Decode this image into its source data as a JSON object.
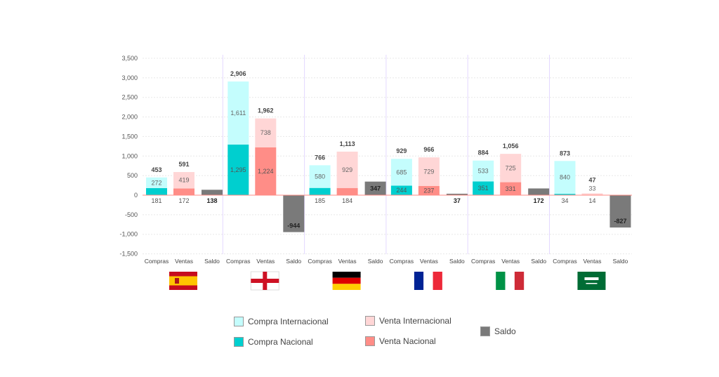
{
  "chart_data": {
    "type": "bar",
    "stacked": true,
    "title": "",
    "xlabel": "",
    "ylabel": "",
    "ylim": [
      -1500,
      3500
    ],
    "yticks": [
      "-1,500",
      "-1,000",
      "-500",
      "0",
      "500",
      "1,000",
      "1,500",
      "2,000",
      "2,500",
      "3,000",
      "3,500"
    ],
    "ytick_values": [
      -1500,
      -1000,
      -500,
      0,
      500,
      1000,
      1500,
      2000,
      2500,
      3000,
      3500
    ],
    "grid": true,
    "bar_labels": [
      "Compras",
      "Ventas",
      "Saldo"
    ],
    "groups": [
      {
        "country": "España",
        "flag": "spain-flag",
        "compra_nacional": 181,
        "compra_internacional": 272,
        "compras_total": "453",
        "venta_nacional": 172,
        "venta_internacional": 419,
        "ventas_total": "591",
        "saldo": 138
      },
      {
        "country": "Inglaterra",
        "flag": "england-flag",
        "compra_nacional": 1295,
        "compra_internacional": 1611,
        "compras_total": "2,906",
        "venta_nacional": 1224,
        "venta_internacional": 738,
        "ventas_total": "1,962",
        "saldo": -944
      },
      {
        "country": "Alemania",
        "flag": "germany-flag",
        "compra_nacional": 185,
        "compra_internacional": 580,
        "compras_total": "766",
        "venta_nacional": 184,
        "venta_internacional": 929,
        "ventas_total": "1,113",
        "saldo": 347
      },
      {
        "country": "Francia",
        "flag": "france-flag",
        "compra_nacional": 244,
        "compra_internacional": 685,
        "compras_total": "929",
        "venta_nacional": 237,
        "venta_internacional": 729,
        "ventas_total": "966",
        "saldo": 37
      },
      {
        "country": "Italia",
        "flag": "italy-flag",
        "compra_nacional": 351,
        "compra_internacional": 533,
        "compras_total": "884",
        "venta_nacional": 331,
        "venta_internacional": 725,
        "ventas_total": "1,056",
        "saldo": 172
      },
      {
        "country": "Arabia Saudí",
        "flag": "saudi-arabia-flag",
        "compra_nacional": 34,
        "compra_internacional": 840,
        "compras_total": "873",
        "venta_nacional": 14,
        "venta_internacional": 33,
        "ventas_total": "47",
        "saldo": -827
      }
    ],
    "legend": {
      "placement": "bottom",
      "compra_internacional": "Compra Internacional",
      "compra_nacional": "Compra Nacional",
      "venta_internacional": "Venta Internacional",
      "venta_nacional": "Venta Nacional",
      "saldo": "Saldo"
    },
    "colors": {
      "compra_internacional": "#c4fdfd",
      "compra_nacional": "#00cfcf",
      "venta_internacional": "#ffd6d6",
      "venta_nacional": "#ff8d87",
      "saldo": "#7a7a7a",
      "zero_line": "#ff8d87",
      "separator": "#e4d8ff"
    }
  }
}
